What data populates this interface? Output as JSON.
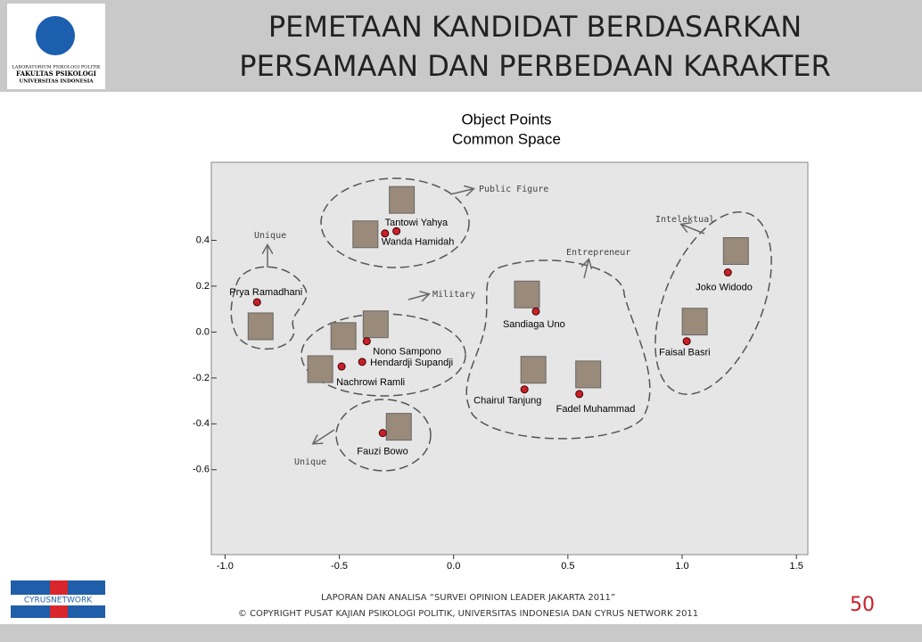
{
  "header": {
    "title_lines": [
      "PEMETAAN KANDIDAT BERDASARKAN",
      "PERSAMAAN DAN PERBEDAAN KARAKTER"
    ],
    "logo_lines": [
      "LABORATORIUM PSIKOLOGI POLITIK",
      "FAKULTAS PSIKOLOGI",
      "UNIVERSITAS INDONESIA"
    ]
  },
  "chart_data": {
    "type": "scatter",
    "title": "Object Points",
    "subtitle": "Common Space",
    "labels": [
      "Tantowi Yahya",
      "Wanda Hamidah",
      "Prya Ramadhani",
      "Nono Sampono",
      "Hendardji Supandji",
      "Nachrowi Ramli",
      "Fauzi Bowo",
      "Sandiaga Uno",
      "Chairul Tanjung",
      "Fadel Muhammad",
      "Joko Widodo",
      "Faisal Basri"
    ],
    "x": [
      -0.25,
      -0.3,
      -0.86,
      -0.38,
      -0.4,
      -0.49,
      -0.31,
      0.36,
      0.31,
      0.55,
      1.2,
      1.02
    ],
    "y": [
      0.44,
      0.43,
      0.13,
      -0.04,
      -0.13,
      -0.15,
      -0.44,
      0.09,
      -0.25,
      -0.27,
      0.26,
      -0.04
    ],
    "color": "#c8202a",
    "annotations": [
      "Public Figure",
      "Unique",
      "Military",
      "Unique",
      "Entrepreneur",
      "Intelektual"
    ],
    "xlim": [
      -1.06,
      1.55
    ],
    "ylim": [
      -0.97,
      0.74
    ],
    "xticks": [
      {
        "value": -1,
        "label": "-1.0"
      },
      -0.5,
      {
        "value": 0,
        "label": "0.0"
      },
      0.5,
      {
        "value": 1,
        "label": "1.0"
      },
      1.5
    ],
    "yticks": [
      0.4,
      0.2,
      {
        "value": 0,
        "label": "0.0"
      },
      -0.2,
      -0.4,
      -0.6
    ]
  },
  "footer": {
    "brand": "CYRUSNETWORK",
    "lines": [
      "LAPORAN DAN ANALISA “SURVEI OPINION LEADER JAKARTA 2011”",
      "© COPYRIGHT PUSAT KAJIAN PSIKOLOGI POLITIK, UNIVERSITAS INDONESIA DAN CYRUS NETWORK 2011"
    ],
    "page": "50"
  }
}
